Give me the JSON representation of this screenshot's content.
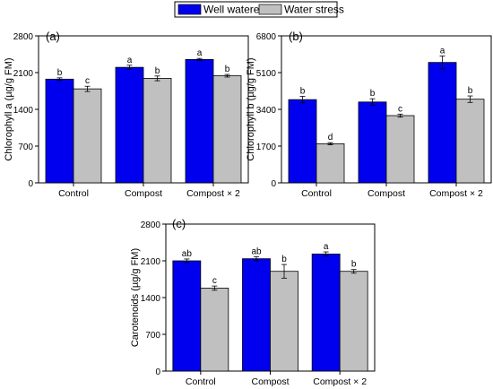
{
  "legend": {
    "items": [
      {
        "label": "Well watered",
        "color": "#0000ee"
      },
      {
        "label": "Water stress",
        "color": "#c0c0c0"
      }
    ]
  },
  "chart_data": [
    {
      "type": "bar",
      "panel_label": "(a)",
      "ylabel": "Chlorophyll a (µg/g FM)",
      "xlabel": "",
      "categories": [
        "Control",
        "Compost",
        "Compost × 2"
      ],
      "ylim": [
        0,
        2800
      ],
      "yticks": [
        0,
        700,
        1400,
        2100,
        2800
      ],
      "series": [
        {
          "name": "Well watered",
          "values": [
            1975,
            2200,
            2350
          ],
          "errors": [
            25,
            40,
            20
          ],
          "letters": [
            "b",
            "a",
            "a"
          ]
        },
        {
          "name": "Water stress",
          "values": [
            1790,
            1990,
            2040
          ],
          "errors": [
            50,
            45,
            25
          ],
          "letters": [
            "c",
            "b",
            "b"
          ]
        }
      ]
    },
    {
      "type": "bar",
      "panel_label": "(b)",
      "ylabel": "Chlorophyll b (µg/g FM)",
      "xlabel": "",
      "categories": [
        "Control",
        "Compost",
        "Compost × 2"
      ],
      "ylim": [
        0,
        6800
      ],
      "yticks": [
        0,
        1700,
        3400,
        5100,
        6800
      ],
      "series": [
        {
          "name": "Well watered",
          "values": [
            3850,
            3740,
            5570
          ],
          "errors": [
            150,
            150,
            300
          ],
          "letters": [
            "b",
            "b",
            "a"
          ]
        },
        {
          "name": "Water stress",
          "values": [
            1810,
            3110,
            3870
          ],
          "errors": [
            50,
            70,
            150
          ],
          "letters": [
            "d",
            "c",
            "b"
          ]
        }
      ]
    },
    {
      "type": "bar",
      "panel_label": "(c)",
      "ylabel": "Carotenoids (µg/g FM)",
      "xlabel": "",
      "categories": [
        "Control",
        "Compost",
        "Compost × 2"
      ],
      "ylim": [
        0,
        2800
      ],
      "yticks": [
        0,
        700,
        1400,
        2100,
        2800
      ],
      "series": [
        {
          "name": "Well watered",
          "values": [
            2100,
            2140,
            2230
          ],
          "errors": [
            35,
            40,
            40
          ],
          "letters": [
            "ab",
            "ab",
            "a"
          ]
        },
        {
          "name": "Water stress",
          "values": [
            1580,
            1900,
            1900
          ],
          "errors": [
            40,
            130,
            35
          ],
          "letters": [
            "c",
            "b",
            "b"
          ]
        }
      ]
    }
  ]
}
